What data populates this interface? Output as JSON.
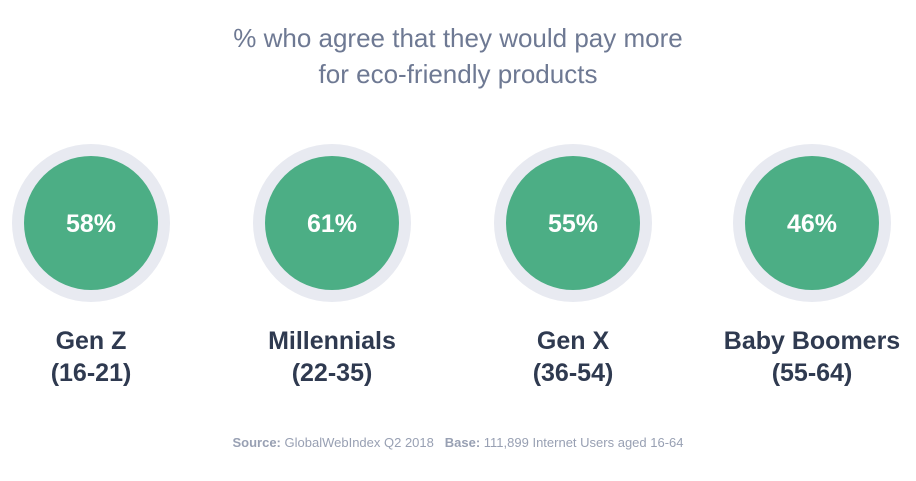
{
  "title": {
    "line1": "% who agree that they would pay more",
    "line2": "for eco-friendly products"
  },
  "chart_data": {
    "type": "bubble-percent",
    "title": "% who agree that they would pay more for eco-friendly products",
    "categories": [
      {
        "name": "Gen Z",
        "range": "(16-21)",
        "value": 58,
        "label": "58%"
      },
      {
        "name": "Millennials",
        "range": "(22-35)",
        "value": 61,
        "label": "61%"
      },
      {
        "name": "Gen X",
        "range": "(36-54)",
        "value": 55,
        "label": "55%"
      },
      {
        "name": "Baby Boomers",
        "range": "(55-64)",
        "value": 46,
        "label": "46%"
      }
    ],
    "unit": "%"
  },
  "source": {
    "source_label": "Source:",
    "source_text": "GlobalWebIndex Q2 2018",
    "base_label": "Base:",
    "base_text": "111,899 Internet Users aged 16-64"
  },
  "colors": {
    "ring": "#e8eaf1",
    "fill": "#4cae85",
    "value_text": "#ffffff",
    "label_text": "#2f3a50",
    "title_text": "#6e7993",
    "source_text": "#98a0b3"
  }
}
